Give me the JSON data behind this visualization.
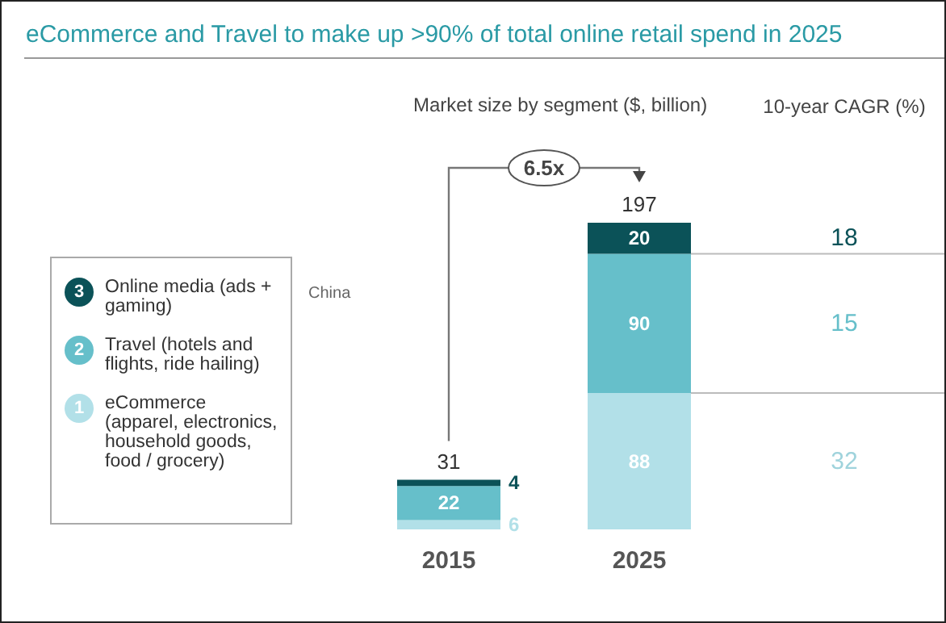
{
  "chart_data": {
    "type": "bar",
    "title": "eCommerce and Travel to make up >90% of total online retail spend in 2025",
    "subtitle": "Market size by segment ($, billion)",
    "categories": [
      "2015",
      "2025"
    ],
    "stacked": true,
    "data_labels": true,
    "totals": [
      "31",
      "197"
    ],
    "legend": "left",
    "ref_lines": [
      {
        "axis": "y",
        "value": 88,
        "color": "#bbbbbb"
      },
      {
        "axis": "y",
        "value": 178,
        "color": "#bbbbbb"
      }
    ],
    "series": [
      {
        "name": "eCommerce (apparel, electronics, household goods, food / grocery)",
        "color": "#b2e0e8",
        "values": [
          6,
          88
        ]
      },
      {
        "name": "Travel (hotels and flights, ride hailing)",
        "color": "#66bfca",
        "values": [
          22,
          90
        ]
      },
      {
        "name": "Online media (ads + gaming)",
        "color": "#0b5258",
        "values": [
          4,
          20
        ]
      }
    ],
    "annotations": [
      "10-year CAGR (%)",
      "18",
      "15",
      "32",
      "6.5x",
      "China",
      "3",
      "2",
      "1"
    ]
  }
}
